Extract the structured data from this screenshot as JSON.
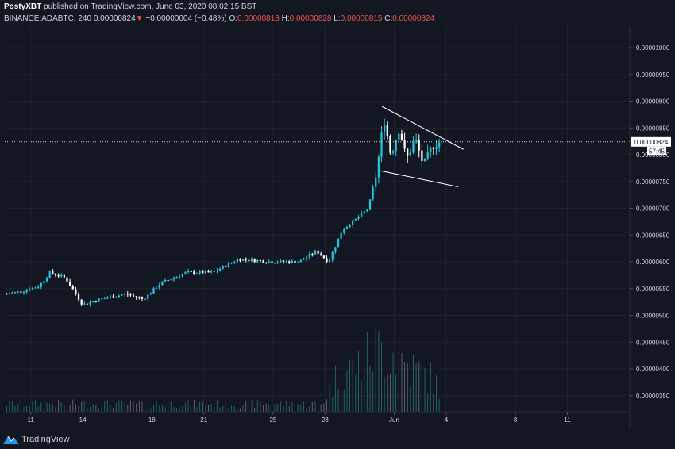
{
  "header": {
    "author": "PostyXBT",
    "published_text": "published on TradingView.com, June 03, 2020 08:02:15 BST",
    "symbol": "BINANCE:ADABTC, 240",
    "last_price": "0.00000824",
    "change_arrow": "▼",
    "change": "−0.00000004 (−0.48%)",
    "o_label": "O:",
    "o_value": "0.00000818",
    "h_label": "H:",
    "h_value": "0.00000828",
    "l_label": "L:",
    "l_value": "0.00000815",
    "c_label": "C:",
    "c_value": "0.00000824"
  },
  "price_axis": {
    "tick_values": [
      3.5e-06,
      4e-06,
      4.5e-06,
      5e-06,
      5.5e-06,
      6e-06,
      6.5e-06,
      7e-06,
      7.5e-06,
      8e-06,
      8.5e-06,
      9e-06,
      9.5e-06,
      1e-05
    ],
    "tick_labels": [
      "0.00000350",
      "0.00000400",
      "0.00000450",
      "0.00000500",
      "0.00000550",
      "0.00000600",
      "0.00000650",
      "0.00000700",
      "0.00000750",
      "0.00000800",
      "0.00000850",
      "0.00000900",
      "0.00000950",
      "0.00001000"
    ],
    "last_price_label": "0.00000824",
    "countdown_label": "57:45"
  },
  "time_axis": {
    "ticks": [
      {
        "label": "11",
        "day": 11
      },
      {
        "label": "14",
        "day": 14
      },
      {
        "label": "18",
        "day": 18
      },
      {
        "label": "21",
        "day": 21
      },
      {
        "label": "25",
        "day": 25
      },
      {
        "label": "28",
        "day": 28
      },
      {
        "label": "Jun",
        "day": 32
      },
      {
        "label": "4",
        "day": 35
      },
      {
        "label": "8",
        "day": 39
      },
      {
        "label": "11",
        "day": 42
      }
    ]
  },
  "chart_data": {
    "type": "candlestick",
    "symbol": "BINANCE:ADABTC",
    "interval": "240",
    "ylim": [
      3.2e-06,
      1.04e-05
    ],
    "xlim_days": [
      9.5,
      45.6
    ],
    "anchors": [
      {
        "day": 9.6,
        "price": 5.4e-06
      },
      {
        "day": 10.5,
        "price": 5.45e-06
      },
      {
        "day": 11.5,
        "price": 5.55e-06
      },
      {
        "day": 12.1,
        "price": 5.8e-06
      },
      {
        "day": 13.0,
        "price": 5.7e-06
      },
      {
        "day": 14.0,
        "price": 5.2e-06
      },
      {
        "day": 15.0,
        "price": 5.3e-06
      },
      {
        "day": 16.5,
        "price": 5.4e-06
      },
      {
        "day": 17.5,
        "price": 5.3e-06
      },
      {
        "day": 18.5,
        "price": 5.6e-06
      },
      {
        "day": 20.0,
        "price": 5.8e-06
      },
      {
        "day": 21.5,
        "price": 5.8e-06
      },
      {
        "day": 23.0,
        "price": 6.05e-06
      },
      {
        "day": 25.0,
        "price": 6e-06
      },
      {
        "day": 26.5,
        "price": 6e-06
      },
      {
        "day": 27.5,
        "price": 6.2e-06
      },
      {
        "day": 28.2,
        "price": 6e-06
      },
      {
        "day": 28.6,
        "price": 6.3e-06
      },
      {
        "day": 29.0,
        "price": 6.6e-06
      },
      {
        "day": 29.8,
        "price": 6.8e-06
      },
      {
        "day": 30.5,
        "price": 7e-06
      },
      {
        "day": 31.0,
        "price": 7.7e-06
      },
      {
        "day": 31.4,
        "price": 8.7e-06
      },
      {
        "day": 31.8,
        "price": 8e-06
      },
      {
        "day": 32.3,
        "price": 8.5e-06
      },
      {
        "day": 32.7,
        "price": 7.9e-06
      },
      {
        "day": 33.2,
        "price": 8.3e-06
      },
      {
        "day": 33.7,
        "price": 7.8e-06
      },
      {
        "day": 34.3,
        "price": 8.2e-06
      },
      {
        "day": 34.7,
        "price": 8.24e-06
      }
    ],
    "volume_anchors": [
      {
        "day": 9.6,
        "volume": 0.1
      },
      {
        "day": 27.8,
        "volume": 0.1
      },
      {
        "day": 28.7,
        "volume": 0.45
      },
      {
        "day": 30.0,
        "volume": 0.6
      },
      {
        "day": 31.0,
        "volume": 0.8
      },
      {
        "day": 32.0,
        "volume": 0.75
      },
      {
        "day": 33.0,
        "volume": 0.55
      },
      {
        "day": 34.0,
        "volume": 0.45
      },
      {
        "day": 34.8,
        "volume": 0.25
      }
    ],
    "pattern": {
      "upper_line": [
        {
          "day": 31.3,
          "price": 8.9e-06
        },
        {
          "day": 36.0,
          "price": 8.1e-06
        }
      ],
      "lower_line": [
        {
          "day": 31.2,
          "price": 7.7e-06
        },
        {
          "day": 35.7,
          "price": 7.4e-06
        }
      ]
    },
    "last_price": 8.24e-06,
    "colors": {
      "up": "#26c6da",
      "down": "#ffffff",
      "volume_up": "#26a69a",
      "volume_down": "#9aa0a6",
      "background": "#131722",
      "grid": "#1e2230",
      "axis_text": "#d1d4dc",
      "pattern_line": "#ffffff",
      "last_price_line": "#d1d4dc"
    }
  },
  "footer": {
    "brand": "TradingView",
    "logo_icon": "tradingview-logo-icon"
  }
}
